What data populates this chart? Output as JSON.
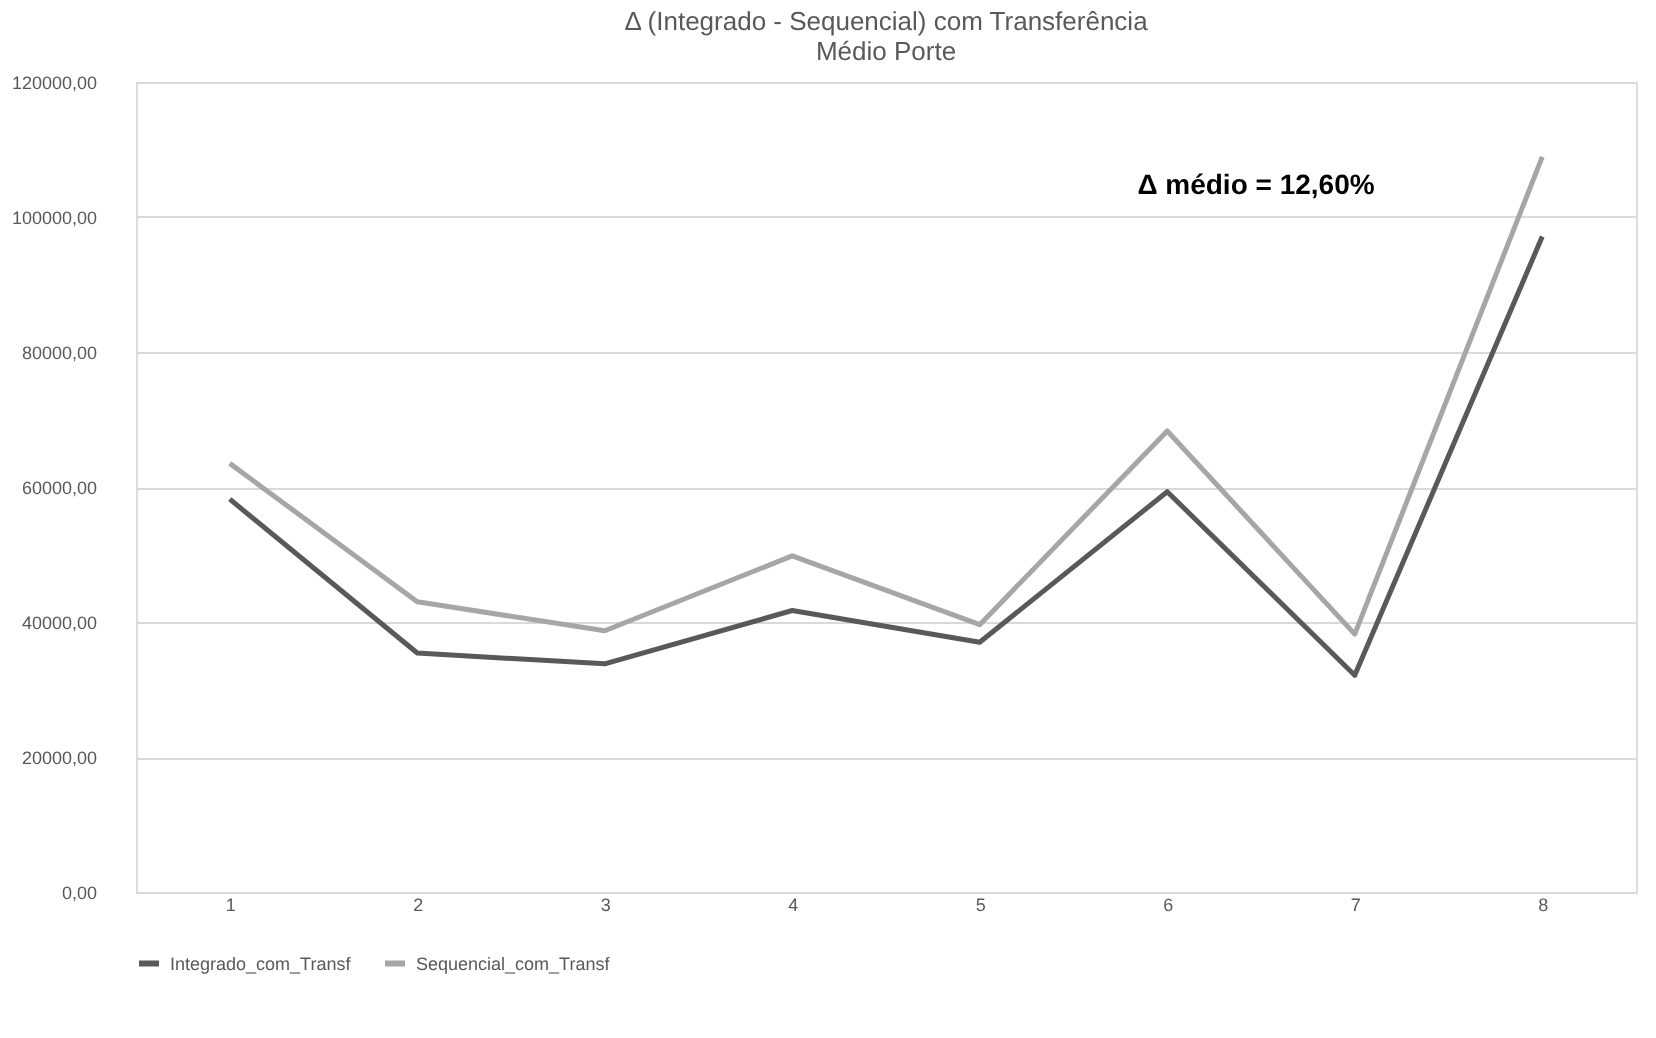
{
  "chart_data": {
    "type": "line",
    "title": "Δ (Integrado - Sequencial) com Transferência",
    "subtitle": "Médio Porte",
    "categories": [
      "1",
      "2",
      "3",
      "4",
      "5",
      "6",
      "7",
      "8"
    ],
    "series": [
      {
        "name": "Integrado_com_Transf",
        "color": "#595959",
        "values": [
          58200,
          35400,
          33800,
          41700,
          37000,
          59300,
          32100,
          97100
        ]
      },
      {
        "name": "Sequencial_com_Transf",
        "color": "#a6a6a6",
        "values": [
          63500,
          43000,
          38700,
          49800,
          39600,
          68300,
          38200,
          108900
        ]
      }
    ],
    "ylim": [
      0,
      120000
    ],
    "yticks": [
      {
        "value": 0,
        "label": "0,00"
      },
      {
        "value": 20000,
        "label": "20000,00"
      },
      {
        "value": 40000,
        "label": "40000,00"
      },
      {
        "value": 60000,
        "label": "60000,00"
      },
      {
        "value": 80000,
        "label": "80000,00"
      },
      {
        "value": 100000,
        "label": "100000,00"
      },
      {
        "value": 120000,
        "label": "120000,00"
      }
    ],
    "annotations": [
      "Δ médio = 12,60%"
    ],
    "grid": "y",
    "legend": "bottom",
    "marker": "none",
    "line_style": "solid"
  }
}
